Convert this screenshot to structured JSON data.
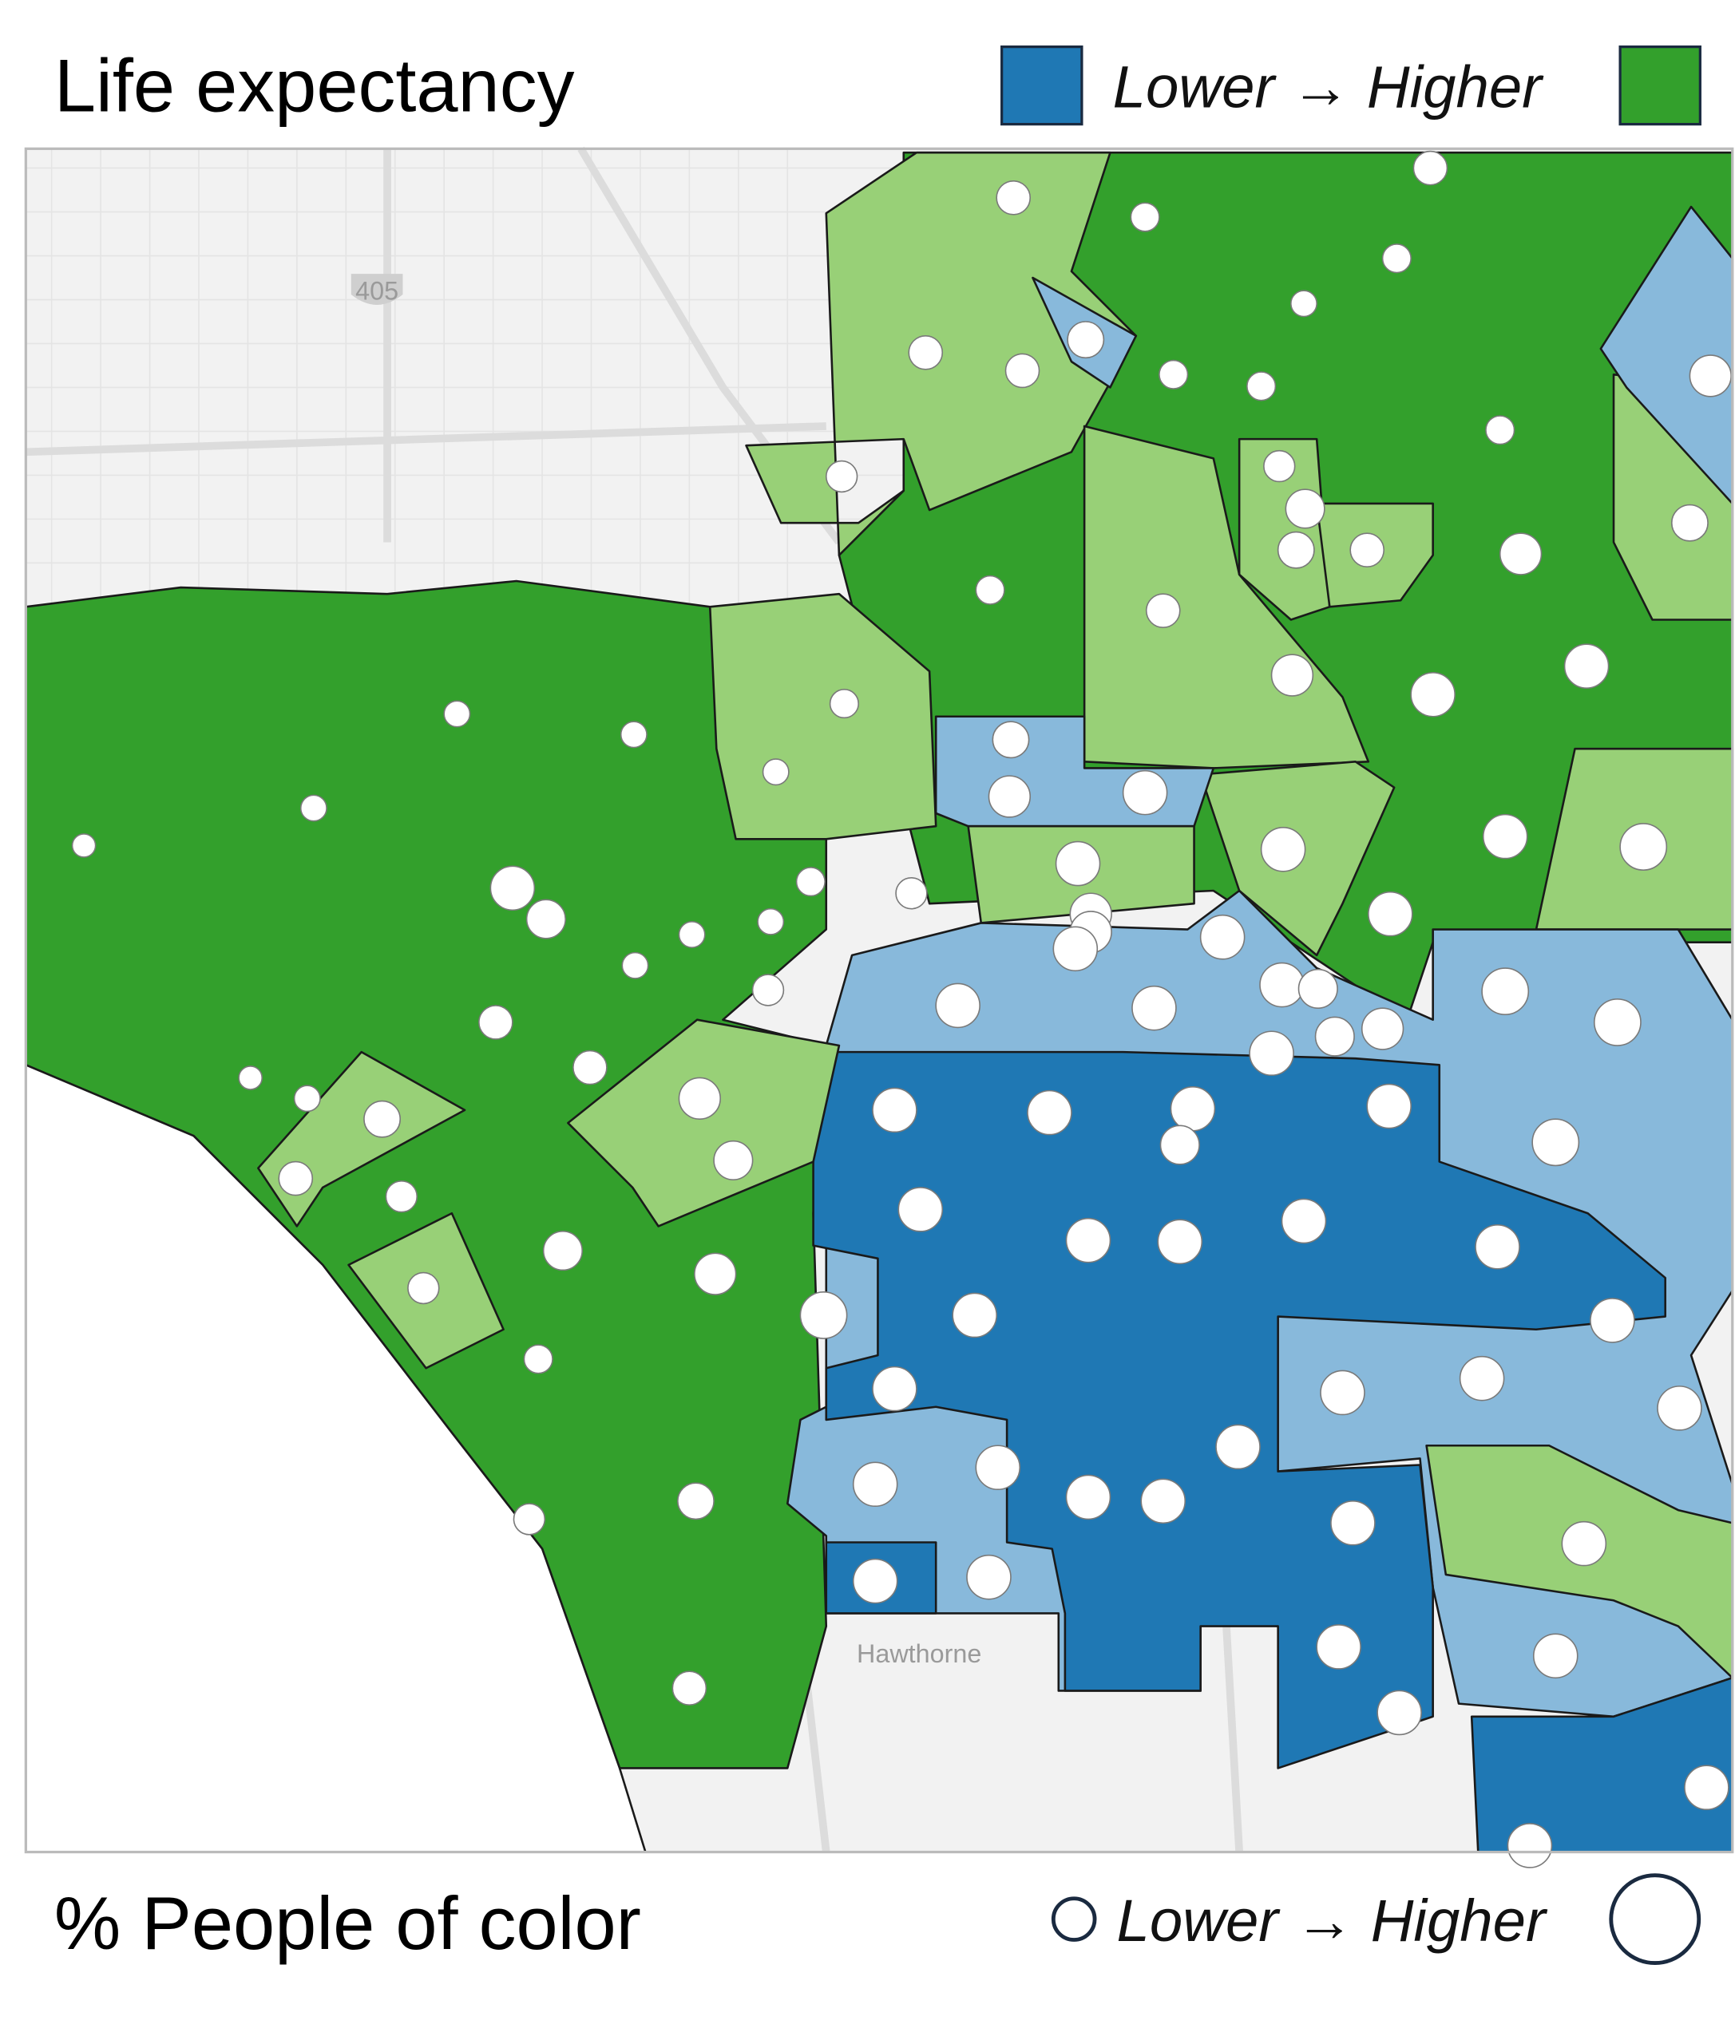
{
  "header": {
    "title": "Life expectancy",
    "legend": "Lower → Higher"
  },
  "footer": {
    "title": "% People of color",
    "legend": "Lower → Higher"
  },
  "map": {
    "labels": [
      "Hawthorne",
      "405"
    ]
  }
}
